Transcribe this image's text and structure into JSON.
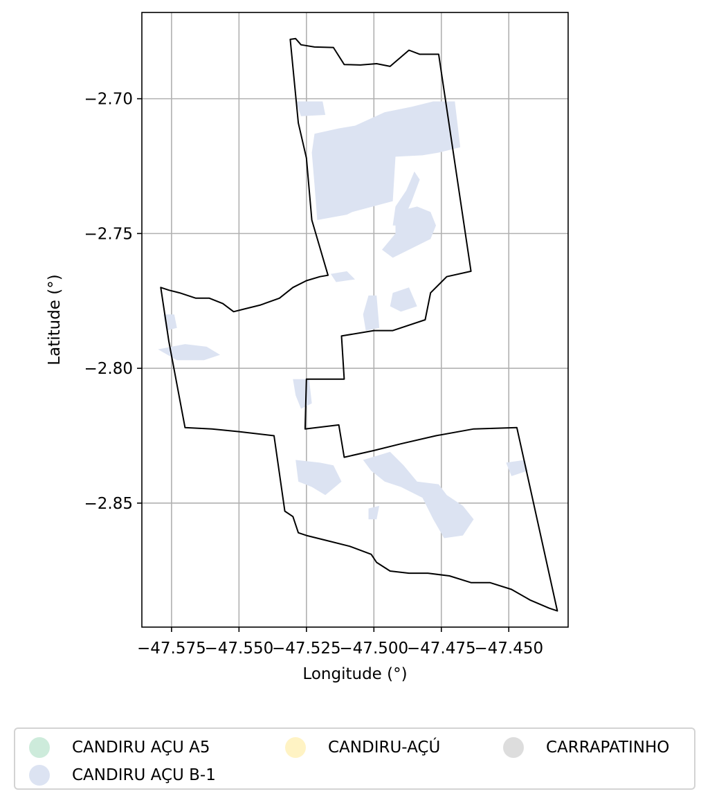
{
  "chart_data": {
    "type": "map",
    "xlabel": "Longitude (°)",
    "ylabel": "Latitude (°)",
    "xlim": [
      -47.586,
      -47.428
    ],
    "ylim": [
      -2.896,
      -2.668
    ],
    "grid": true,
    "x_ticks": [
      {
        "value": -47.575,
        "label": "−47.575"
      },
      {
        "value": -47.55,
        "label": "−47.550"
      },
      {
        "value": -47.525,
        "label": "−47.525"
      },
      {
        "value": -47.5,
        "label": "−47.500"
      },
      {
        "value": -47.475,
        "label": "−47.475"
      },
      {
        "value": -47.45,
        "label": "−47.450"
      }
    ],
    "y_ticks": [
      {
        "value": -2.7,
        "label": "−2.70"
      },
      {
        "value": -2.75,
        "label": "−2.75"
      },
      {
        "value": -2.8,
        "label": "−2.80"
      },
      {
        "value": -2.85,
        "label": "−2.85"
      }
    ],
    "boundary_color": "#000000",
    "boundary": [
      [
        -47.531,
        -2.678
      ],
      [
        -47.529,
        -2.6777
      ],
      [
        -47.527,
        -2.68
      ],
      [
        -47.522,
        -2.6808
      ],
      [
        -47.515,
        -2.681
      ],
      [
        -47.511,
        -2.6873
      ],
      [
        -47.505,
        -2.6875
      ],
      [
        -47.499,
        -2.687
      ],
      [
        -47.494,
        -2.688
      ],
      [
        -47.487,
        -2.682
      ],
      [
        -47.483,
        -2.6835
      ],
      [
        -47.476,
        -2.6835
      ],
      [
        -47.464,
        -2.764
      ],
      [
        -47.473,
        -2.766
      ],
      [
        -47.479,
        -2.772
      ],
      [
        -47.481,
        -2.782
      ],
      [
        -47.493,
        -2.786
      ],
      [
        -47.5,
        -2.786
      ],
      [
        -47.512,
        -2.788
      ],
      [
        -47.511,
        -2.804
      ],
      [
        -47.525,
        -2.804
      ],
      [
        -47.5255,
        -2.8225
      ],
      [
        -47.513,
        -2.821
      ],
      [
        -47.511,
        -2.833
      ],
      [
        -47.5,
        -2.8305
      ],
      [
        -47.49,
        -2.828
      ],
      [
        -47.477,
        -2.825
      ],
      [
        -47.463,
        -2.8225
      ],
      [
        -47.447,
        -2.822
      ],
      [
        -47.432,
        -2.89
      ],
      [
        -47.435,
        -2.889
      ],
      [
        -47.442,
        -2.886
      ],
      [
        -47.449,
        -2.882
      ],
      [
        -47.457,
        -2.8795
      ],
      [
        -47.464,
        -2.8795
      ],
      [
        -47.472,
        -2.877
      ],
      [
        -47.48,
        -2.876
      ],
      [
        -47.487,
        -2.876
      ],
      [
        -47.494,
        -2.8752
      ],
      [
        -47.499,
        -2.872
      ],
      [
        -47.501,
        -2.869
      ],
      [
        -47.509,
        -2.866
      ],
      [
        -47.517,
        -2.864
      ],
      [
        -47.525,
        -2.862
      ],
      [
        -47.528,
        -2.861
      ],
      [
        -47.53,
        -2.855
      ],
      [
        -47.533,
        -2.853
      ],
      [
        -47.537,
        -2.825
      ],
      [
        -47.55,
        -2.8235
      ],
      [
        -47.56,
        -2.8225
      ],
      [
        -47.57,
        -2.822
      ],
      [
        -47.576,
        -2.79
      ],
      [
        -47.579,
        -2.77
      ],
      [
        -47.576,
        -2.771
      ],
      [
        -47.572,
        -2.772
      ],
      [
        -47.566,
        -2.774
      ],
      [
        -47.561,
        -2.774
      ],
      [
        -47.556,
        -2.776
      ],
      [
        -47.552,
        -2.779
      ],
      [
        -47.548,
        -2.778
      ],
      [
        -47.542,
        -2.7765
      ],
      [
        -47.535,
        -2.774
      ],
      [
        -47.53,
        -2.77
      ],
      [
        -47.525,
        -2.7675
      ],
      [
        -47.52,
        -2.766
      ],
      [
        -47.517,
        -2.7655
      ],
      [
        -47.523,
        -2.745
      ],
      [
        -47.525,
        -2.722
      ],
      [
        -47.528,
        -2.709
      ],
      [
        -47.531,
        -2.678
      ]
    ],
    "layers": [
      {
        "name": "CANDIRU AÇU B-1",
        "color": "#dce3f2",
        "polygons": [
          [
            [
              -47.529,
              -2.701
            ],
            [
              -47.519,
              -2.701
            ],
            [
              -47.518,
              -2.706
            ],
            [
              -47.527,
              -2.7065
            ]
          ],
          [
            [
              -47.523,
              -2.72
            ],
            [
              -47.522,
              -2.713
            ],
            [
              -47.513,
              -2.711
            ],
            [
              -47.507,
              -2.71
            ],
            [
              -47.496,
              -2.705
            ],
            [
              -47.486,
              -2.703
            ],
            [
              -47.478,
              -2.701
            ],
            [
              -47.47,
              -2.701
            ],
            [
              -47.468,
              -2.718
            ],
            [
              -47.476,
              -2.72
            ],
            [
              -47.482,
              -2.721
            ],
            [
              -47.492,
              -2.7215
            ],
            [
              -47.493,
              -2.738
            ],
            [
              -47.508,
              -2.742
            ],
            [
              -47.51,
              -2.743
            ],
            [
              -47.521,
              -2.745
            ],
            [
              -47.522,
              -2.732
            ]
          ],
          [
            [
              -47.485,
              -2.727
            ],
            [
              -47.488,
              -2.734
            ],
            [
              -47.492,
              -2.74
            ],
            [
              -47.493,
              -2.747
            ],
            [
              -47.49,
              -2.747
            ],
            [
              -47.486,
              -2.738
            ],
            [
              -47.483,
              -2.73
            ]
          ],
          [
            [
              -47.492,
              -2.742
            ],
            [
              -47.484,
              -2.74
            ],
            [
              -47.479,
              -2.742
            ],
            [
              -47.477,
              -2.747
            ],
            [
              -47.479,
              -2.752
            ],
            [
              -47.487,
              -2.756
            ],
            [
              -47.493,
              -2.759
            ],
            [
              -47.497,
              -2.756
            ],
            [
              -47.492,
              -2.75
            ]
          ],
          [
            [
              -47.502,
              -2.773
            ],
            [
              -47.499,
              -2.773
            ],
            [
              -47.498,
              -2.785
            ],
            [
              -47.503,
              -2.786
            ],
            [
              -47.504,
              -2.78
            ]
          ],
          [
            [
              -47.493,
              -2.772
            ],
            [
              -47.487,
              -2.77
            ],
            [
              -47.484,
              -2.777
            ],
            [
              -47.49,
              -2.779
            ],
            [
              -47.494,
              -2.777
            ]
          ],
          [
            [
              -47.516,
              -2.765
            ],
            [
              -47.51,
              -2.764
            ],
            [
              -47.507,
              -2.767
            ],
            [
              -47.514,
              -2.768
            ]
          ],
          [
            [
              -47.58,
              -2.793
            ],
            [
              -47.57,
              -2.791
            ],
            [
              -47.562,
              -2.792
            ],
            [
              -47.557,
              -2.795
            ],
            [
              -47.563,
              -2.797
            ],
            [
              -47.573,
              -2.797
            ]
          ],
          [
            [
              -47.578,
              -2.78
            ],
            [
              -47.574,
              -2.78
            ],
            [
              -47.573,
              -2.785
            ],
            [
              -47.577,
              -2.786
            ]
          ],
          [
            [
              -47.53,
              -2.804
            ],
            [
              -47.524,
              -2.804
            ],
            [
              -47.523,
              -2.813
            ],
            [
              -47.527,
              -2.815
            ],
            [
              -47.529,
              -2.81
            ]
          ],
          [
            [
              -47.529,
              -2.834
            ],
            [
              -47.52,
              -2.835
            ],
            [
              -47.515,
              -2.836
            ],
            [
              -47.512,
              -2.842
            ],
            [
              -47.518,
              -2.847
            ],
            [
              -47.523,
              -2.844
            ],
            [
              -47.528,
              -2.842
            ]
          ],
          [
            [
              -47.504,
              -2.834
            ],
            [
              -47.494,
              -2.831
            ],
            [
              -47.489,
              -2.836
            ],
            [
              -47.484,
              -2.842
            ],
            [
              -47.476,
              -2.843
            ],
            [
              -47.473,
              -2.847
            ],
            [
              -47.467,
              -2.851
            ],
            [
              -47.463,
              -2.856
            ],
            [
              -47.467,
              -2.862
            ],
            [
              -47.474,
              -2.863
            ],
            [
              -47.478,
              -2.856
            ],
            [
              -47.482,
              -2.848
            ],
            [
              -47.49,
              -2.844
            ],
            [
              -47.496,
              -2.842
            ],
            [
              -47.501,
              -2.838
            ]
          ],
          [
            [
              -47.451,
              -2.835
            ],
            [
              -47.444,
              -2.834
            ],
            [
              -47.443,
              -2.838
            ],
            [
              -47.449,
              -2.84
            ]
          ],
          [
            [
              -47.502,
              -2.852
            ],
            [
              -47.498,
              -2.851
            ],
            [
              -47.499,
              -2.856
            ],
            [
              -47.502,
              -2.856
            ]
          ]
        ]
      }
    ],
    "legend": {
      "placement": "below",
      "columns": 3,
      "entries": [
        {
          "label": "CANDIRU AÇU A5",
          "color": "#cdebdb"
        },
        {
          "label": "CANDIRU AÇU B-1",
          "color": "#dce3f2"
        },
        {
          "label": "CANDIRU-AÇÚ",
          "color": "#fff3c4"
        },
        {
          "label": "CARRAPATINHO",
          "color": "#dddddd"
        }
      ]
    }
  }
}
